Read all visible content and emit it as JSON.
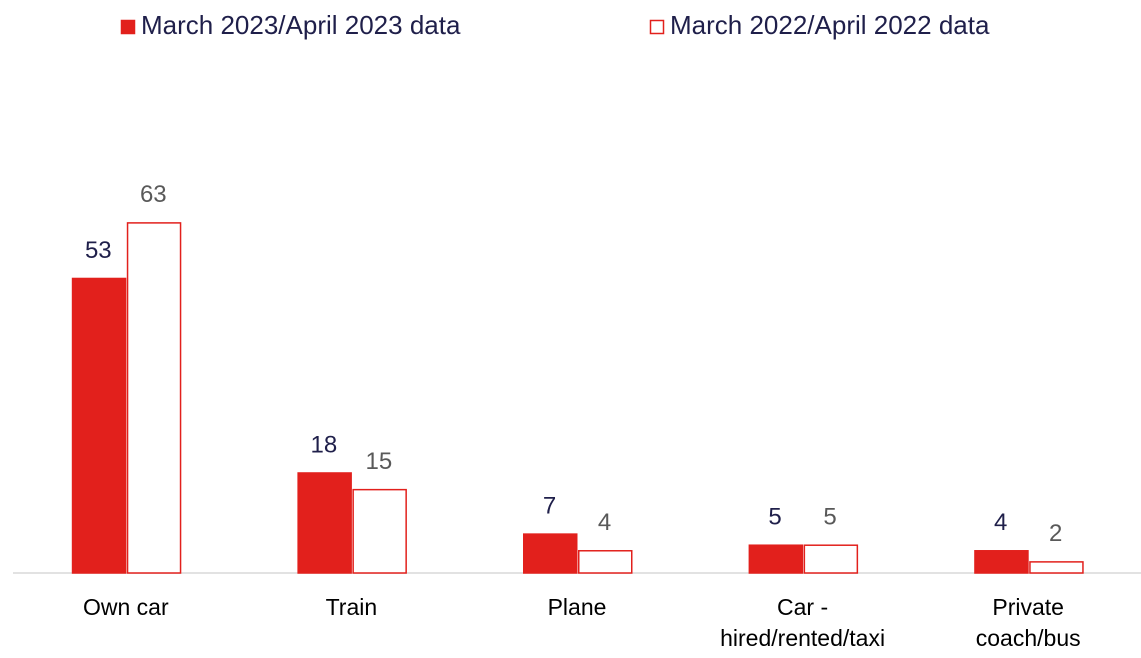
{
  "chart_data": {
    "type": "bar",
    "categories": [
      "Own car",
      "Train",
      "Plane",
      "Car -\nhired/rented/taxi",
      "Private\ncoach/bus"
    ],
    "series": [
      {
        "name": "March 2023/April 2023 data",
        "color": "#e2201c",
        "values": [
          53,
          18,
          7,
          5,
          4
        ]
      },
      {
        "name": "March 2022/April 2022 data",
        "color": "#ffffff",
        "values": [
          63,
          15,
          4,
          5,
          2
        ]
      }
    ],
    "ylim": [
      0,
      70
    ]
  }
}
